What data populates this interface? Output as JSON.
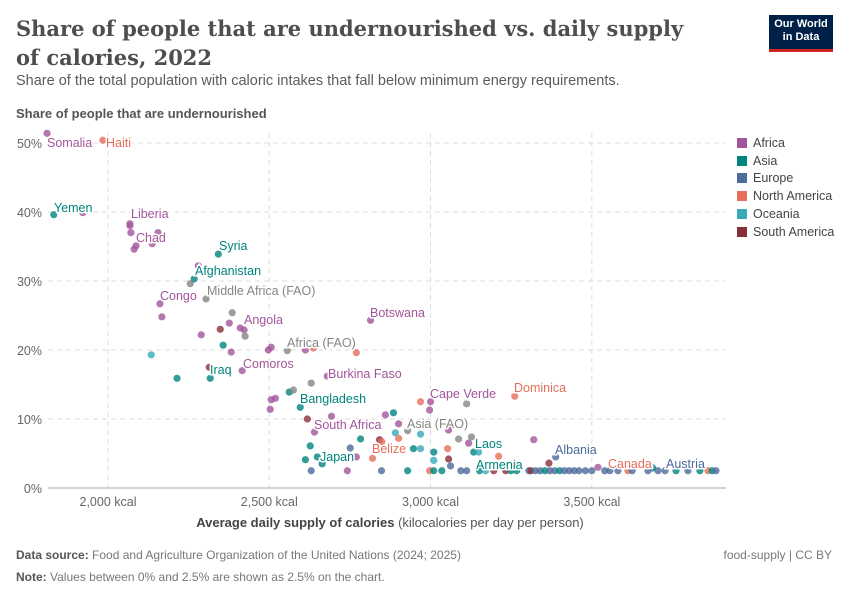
{
  "header": {
    "title": "Share of people that are undernourished vs. daily supply of calories, 2022",
    "subtitle": "Share of the total population with caloric intakes that fall below minimum energy requirements.",
    "logo": "Our World in Data"
  },
  "footer": {
    "source_label": "Data source:",
    "source": "Food and Agriculture Organization of the United Nations (2024; 2025)",
    "note_label": "Note:",
    "note": "Values between 0% and 2.5% are shown as 2.5% on the chart.",
    "license": "food-supply | CC BY"
  },
  "chart_data": {
    "type": "scatter",
    "title": "Share of people that are undernourished vs. daily supply of calories, 2022",
    "ylabel": "Share of people that are undernourished",
    "xlabel_bold": "Average daily supply of calories",
    "xlabel_unit": "(kilocalories per day per person)",
    "xlim": [
      1814,
      3916
    ],
    "ylim": [
      0,
      52
    ],
    "xticks": [
      2000,
      2500,
      3000,
      3500
    ],
    "xtick_labels": [
      "2,000 kcal",
      "2,500 kcal",
      "3,000 kcal",
      "3,500 kcal"
    ],
    "yticks": [
      0,
      10,
      20,
      30,
      40,
      50
    ],
    "ytick_labels": [
      "0%",
      "10%",
      "20%",
      "30%",
      "40%",
      "50%"
    ],
    "grid": true,
    "legend_position": "right",
    "legend": [
      {
        "name": "Africa",
        "color": "#a2559c"
      },
      {
        "name": "Asia",
        "color": "#00847e"
      },
      {
        "name": "Europe",
        "color": "#4c6a9c"
      },
      {
        "name": "North America",
        "color": "#e56e5a"
      },
      {
        "name": "Oceania",
        "color": "#38aaba"
      },
      {
        "name": "South America",
        "color": "#883039"
      }
    ],
    "aggregate_color": "#858585",
    "points": [
      {
        "x": 1811,
        "y": 51.4,
        "r": "Africa",
        "label": "Somalia"
      },
      {
        "x": 1984,
        "y": 50.4,
        "r": "North America",
        "label": "Haiti"
      },
      {
        "x": 1832,
        "y": 39.6,
        "r": "Asia",
        "label": "Yemen"
      },
      {
        "x": 1922,
        "y": 39.9,
        "r": "Africa"
      },
      {
        "x": 2068,
        "y": 38.3,
        "r": "Africa",
        "label": "Liberia"
      },
      {
        "x": 2068,
        "y": 38.0,
        "r": "Africa"
      },
      {
        "x": 2071,
        "y": 37.0,
        "r": "Africa"
      },
      {
        "x": 2155,
        "y": 37.0,
        "r": "Africa"
      },
      {
        "x": 2087,
        "y": 35.1,
        "r": "Africa",
        "label": "Chad"
      },
      {
        "x": 2081,
        "y": 34.6,
        "r": "Africa"
      },
      {
        "x": 2137,
        "y": 35.4,
        "r": "Africa"
      },
      {
        "x": 2342,
        "y": 33.9,
        "r": "Asia",
        "label": "Syria"
      },
      {
        "x": 2280,
        "y": 32.2,
        "r": "Africa"
      },
      {
        "x": 2267,
        "y": 30.3,
        "r": "Asia",
        "label": "Afghanistan"
      },
      {
        "x": 2255,
        "y": 29.6,
        "r": "aggregate"
      },
      {
        "x": 2304,
        "y": 27.4,
        "r": "aggregate",
        "label": "Middle Africa (FAO)"
      },
      {
        "x": 2161,
        "y": 26.7,
        "r": "Africa",
        "label": "Congo"
      },
      {
        "x": 2167,
        "y": 24.8,
        "r": "Africa"
      },
      {
        "x": 2385,
        "y": 25.4,
        "r": "aggregate"
      },
      {
        "x": 2376,
        "y": 23.9,
        "r": "Africa"
      },
      {
        "x": 2410,
        "y": 23.2,
        "r": "Africa",
        "label": "Angola"
      },
      {
        "x": 2422,
        "y": 22.9,
        "r": "Africa"
      },
      {
        "x": 2348,
        "y": 23.0,
        "r": "South America"
      },
      {
        "x": 2289,
        "y": 22.2,
        "r": "Africa"
      },
      {
        "x": 2425,
        "y": 22.0,
        "r": "aggregate"
      },
      {
        "x": 2357,
        "y": 20.7,
        "r": "Asia"
      },
      {
        "x": 2134,
        "y": 19.3,
        "r": "Oceania"
      },
      {
        "x": 2382,
        "y": 19.7,
        "r": "Africa"
      },
      {
        "x": 2497,
        "y": 20.0,
        "r": "Africa"
      },
      {
        "x": 2506,
        "y": 20.4,
        "r": "Africa"
      },
      {
        "x": 2556,
        "y": 19.9,
        "r": "aggregate",
        "label": "Africa (FAO)"
      },
      {
        "x": 2612,
        "y": 20.0,
        "r": "Africa"
      },
      {
        "x": 2637,
        "y": 20.3,
        "r": "North America"
      },
      {
        "x": 2770,
        "y": 19.6,
        "r": "North America"
      },
      {
        "x": 2814,
        "y": 24.3,
        "r": "Africa",
        "label": "Botswana"
      },
      {
        "x": 2314,
        "y": 17.5,
        "r": "South America"
      },
      {
        "x": 2317,
        "y": 15.9,
        "r": "Asia",
        "label": "Iraq"
      },
      {
        "x": 2416,
        "y": 17.0,
        "r": "Africa",
        "label": "Comoros"
      },
      {
        "x": 2214,
        "y": 15.9,
        "r": "Asia"
      },
      {
        "x": 2630,
        "y": 15.2,
        "r": "aggregate"
      },
      {
        "x": 2680,
        "y": 16.2,
        "r": "Africa",
        "label": "Burkina Faso"
      },
      {
        "x": 2562,
        "y": 13.9,
        "r": "Asia"
      },
      {
        "x": 2575,
        "y": 14.2,
        "r": "aggregate"
      },
      {
        "x": 2596,
        "y": 11.7,
        "r": "Asia",
        "label": "Bangladesh"
      },
      {
        "x": 2506,
        "y": 12.8,
        "r": "Africa"
      },
      {
        "x": 2519,
        "y": 13.0,
        "r": "Africa"
      },
      {
        "x": 2503,
        "y": 11.4,
        "r": "Africa"
      },
      {
        "x": 2618,
        "y": 10.0,
        "r": "South America"
      },
      {
        "x": 2693,
        "y": 10.4,
        "r": "Africa"
      },
      {
        "x": 2640,
        "y": 8.1,
        "r": "Africa",
        "label": "South Africa"
      },
      {
        "x": 2860,
        "y": 10.6,
        "r": "Africa"
      },
      {
        "x": 2885,
        "y": 10.9,
        "r": "Asia"
      },
      {
        "x": 2901,
        "y": 9.3,
        "r": "Africa"
      },
      {
        "x": 2891,
        "y": 8.0,
        "r": "Oceania"
      },
      {
        "x": 2929,
        "y": 8.3,
        "r": "aggregate",
        "label": "Asia (FAO)"
      },
      {
        "x": 2901,
        "y": 7.2,
        "r": "North America"
      },
      {
        "x": 2969,
        "y": 7.8,
        "r": "Oceania"
      },
      {
        "x": 3000,
        "y": 12.5,
        "r": "Africa",
        "label": "Cape Verde"
      },
      {
        "x": 2997,
        "y": 11.3,
        "r": "Africa"
      },
      {
        "x": 2969,
        "y": 12.5,
        "r": "North America"
      },
      {
        "x": 3112,
        "y": 12.2,
        "r": "aggregate"
      },
      {
        "x": 3261,
        "y": 13.3,
        "r": "North America",
        "label": "Dominica"
      },
      {
        "x": 3056,
        "y": 8.4,
        "r": "Africa"
      },
      {
        "x": 2783,
        "y": 7.1,
        "r": "Asia"
      },
      {
        "x": 2842,
        "y": 7.0,
        "r": "South America"
      },
      {
        "x": 2849,
        "y": 6.7,
        "r": "North America"
      },
      {
        "x": 2627,
        "y": 6.1,
        "r": "Asia"
      },
      {
        "x": 2649,
        "y": 4.5,
        "r": "Asia"
      },
      {
        "x": 2664,
        "y": 3.5,
        "r": "Asia",
        "label": "Japan"
      },
      {
        "x": 2751,
        "y": 5.8,
        "r": "Europe"
      },
      {
        "x": 2770,
        "y": 4.5,
        "r": "Africa"
      },
      {
        "x": 2820,
        "y": 4.3,
        "r": "North America",
        "label": "Belize"
      },
      {
        "x": 2612,
        "y": 4.1,
        "r": "Asia"
      },
      {
        "x": 3320,
        "y": 7.0,
        "r": "Africa"
      },
      {
        "x": 2947,
        "y": 5.7,
        "r": "Asia"
      },
      {
        "x": 2969,
        "y": 5.7,
        "r": "Oceania"
      },
      {
        "x": 3010,
        "y": 5.2,
        "r": "Asia"
      },
      {
        "x": 3053,
        "y": 5.7,
        "r": "North America"
      },
      {
        "x": 3087,
        "y": 7.1,
        "r": "aggregate"
      },
      {
        "x": 3118,
        "y": 6.5,
        "r": "Africa"
      },
      {
        "x": 3127,
        "y": 7.4,
        "r": "aggregate"
      },
      {
        "x": 3134,
        "y": 5.2,
        "r": "Asia",
        "label": "Laos"
      },
      {
        "x": 3149,
        "y": 5.2,
        "r": "Oceania"
      },
      {
        "x": 3211,
        "y": 4.6,
        "r": "North America"
      },
      {
        "x": 3367,
        "y": 3.6,
        "r": "South America"
      },
      {
        "x": 3388,
        "y": 4.5,
        "r": "Europe",
        "label": "Albania"
      },
      {
        "x": 3056,
        "y": 4.2,
        "r": "South America"
      },
      {
        "x": 3062,
        "y": 3.2,
        "r": "Europe"
      },
      {
        "x": 3010,
        "y": 4.0,
        "r": "Oceania"
      },
      {
        "x": 3519,
        "y": 3.0,
        "r": "Africa"
      },
      {
        "x": 3689,
        "y": 2.9,
        "r": "Asia"
      },
      {
        "x": 2630,
        "y": 2.5,
        "r": "Europe"
      },
      {
        "x": 2742,
        "y": 2.5,
        "r": "Africa"
      },
      {
        "x": 2848,
        "y": 2.5,
        "r": "Europe"
      },
      {
        "x": 2929,
        "y": 2.5,
        "r": "Asia"
      },
      {
        "x": 2997,
        "y": 2.5,
        "r": "North America"
      },
      {
        "x": 3010,
        "y": 2.5,
        "r": "Asia"
      },
      {
        "x": 3035,
        "y": 2.5,
        "r": "Asia"
      },
      {
        "x": 3094,
        "y": 2.5,
        "r": "Europe"
      },
      {
        "x": 3112,
        "y": 2.5,
        "r": "Europe"
      },
      {
        "x": 3152,
        "y": 2.5,
        "r": "Asia",
        "label": "Armenia"
      },
      {
        "x": 3171,
        "y": 2.5,
        "r": "Oceania"
      },
      {
        "x": 3196,
        "y": 2.5,
        "r": "South America"
      },
      {
        "x": 3233,
        "y": 2.5,
        "r": "South America"
      },
      {
        "x": 3249,
        "y": 2.5,
        "r": "Asia"
      },
      {
        "x": 3267,
        "y": 2.5,
        "r": "Asia"
      },
      {
        "x": 3305,
        "y": 2.5,
        "r": "Europe"
      },
      {
        "x": 3311,
        "y": 2.5,
        "r": "South America"
      },
      {
        "x": 3325,
        "y": 2.5,
        "r": "Europe"
      },
      {
        "x": 3340,
        "y": 2.5,
        "r": "Europe"
      },
      {
        "x": 3355,
        "y": 2.5,
        "r": "Asia"
      },
      {
        "x": 3370,
        "y": 2.5,
        "r": "Europe"
      },
      {
        "x": 3385,
        "y": 2.5,
        "r": "Europe"
      },
      {
        "x": 3400,
        "y": 2.5,
        "r": "Asia"
      },
      {
        "x": 3415,
        "y": 2.5,
        "r": "Europe"
      },
      {
        "x": 3430,
        "y": 2.5,
        "r": "Europe"
      },
      {
        "x": 3445,
        "y": 2.5,
        "r": "Europe"
      },
      {
        "x": 3460,
        "y": 2.5,
        "r": "Europe"
      },
      {
        "x": 3480,
        "y": 2.5,
        "r": "Europe"
      },
      {
        "x": 3500,
        "y": 2.5,
        "r": "Europe"
      },
      {
        "x": 3540,
        "y": 2.5,
        "r": "Europe"
      },
      {
        "x": 3556,
        "y": 2.5,
        "r": "Europe"
      },
      {
        "x": 3581,
        "y": 2.5,
        "r": "Europe"
      },
      {
        "x": 3612,
        "y": 2.5,
        "r": "North America",
        "label": "Canada"
      },
      {
        "x": 3625,
        "y": 2.5,
        "r": "Europe"
      },
      {
        "x": 3674,
        "y": 2.5,
        "r": "Europe"
      },
      {
        "x": 3705,
        "y": 2.5,
        "r": "Europe"
      },
      {
        "x": 3727,
        "y": 2.5,
        "r": "Europe",
        "label": "Austria"
      },
      {
        "x": 3761,
        "y": 2.5,
        "r": "Asia"
      },
      {
        "x": 3798,
        "y": 2.5,
        "r": "Europe"
      },
      {
        "x": 3835,
        "y": 2.5,
        "r": "Asia"
      },
      {
        "x": 3860,
        "y": 2.5,
        "r": "North America"
      },
      {
        "x": 3873,
        "y": 2.5,
        "r": "Asia"
      },
      {
        "x": 3885,
        "y": 2.5,
        "r": "Europe"
      }
    ]
  }
}
